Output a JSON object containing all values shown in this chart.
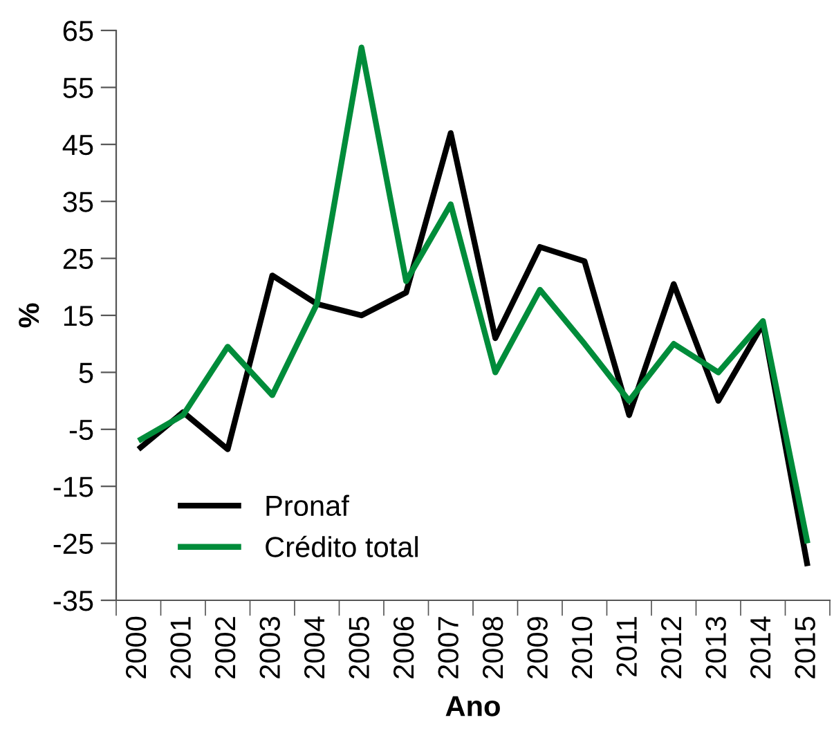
{
  "chart_data": {
    "type": "line",
    "xlabel": "Ano",
    "ylabel": "%",
    "categories": [
      "2000",
      "2001",
      "2002",
      "2003",
      "2004",
      "2005",
      "2006",
      "2007",
      "2008",
      "2009",
      "2010",
      "2011",
      "2012",
      "2013",
      "2014",
      "2015"
    ],
    "series": [
      {
        "name": "Pronaf",
        "color": "#000000",
        "values": [
          -8.5,
          -2,
          -8.5,
          22,
          17,
          15,
          19,
          47,
          11,
          27,
          24.5,
          -2.5,
          20.5,
          0,
          13.5,
          -29
        ]
      },
      {
        "name": "Crédito total",
        "color": "#008c3a",
        "values": [
          -7,
          -2.5,
          9.5,
          1,
          17,
          62,
          21,
          34.5,
          5,
          19.5,
          10,
          0,
          10,
          5,
          14,
          -25
        ]
      }
    ],
    "ylim": [
      -35,
      65
    ],
    "yticks": [
      -35,
      -25,
      -15,
      -5,
      5,
      15,
      25,
      35,
      45,
      55,
      65
    ],
    "grid": false,
    "legend": "bottom left",
    "marker": "none",
    "line_style": "solid"
  }
}
